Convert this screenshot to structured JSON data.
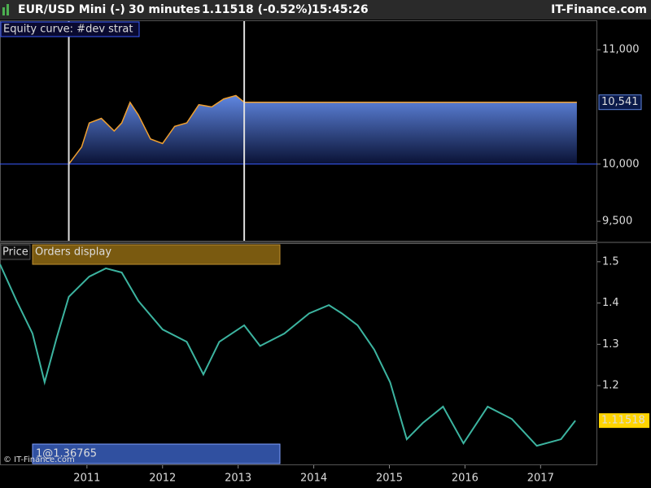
{
  "header": {
    "instrument": "EUR/USD Mini (-)",
    "timeframe": "30 minutes",
    "quote": "1.11518 (-0.52%)",
    "time": "15:45:26",
    "brand": "IT-Finance.com"
  },
  "footer": {
    "copyright": "© IT-Finance.com"
  },
  "chart_data": [
    {
      "type": "area",
      "title": "Equity curve: #dev strat",
      "color": "#6a8fe8",
      "x": [
        2010.76,
        2010.93,
        2011.03,
        2011.19,
        2011.36,
        2011.46,
        2011.57,
        2011.68,
        2011.84,
        2012.0,
        2012.16,
        2012.32,
        2012.48,
        2012.65,
        2012.81,
        2012.97,
        2013.08,
        2017.48
      ],
      "values": [
        10000,
        10150,
        10360,
        10400,
        10290,
        10360,
        10540,
        10430,
        10220,
        10180,
        10330,
        10360,
        10520,
        10500,
        10570,
        10600,
        10541,
        10541
      ],
      "last_value_label": "10,541",
      "baseline": 10000,
      "xlim": [
        2009.85,
        2017.75
      ],
      "ylim": [
        9330,
        11250
      ],
      "yticks": [
        {
          "value": 9500,
          "label": "9,500"
        },
        {
          "value": 10000,
          "label": "10,000"
        },
        {
          "value": 11000,
          "label": "11,000"
        }
      ]
    },
    {
      "type": "line",
      "title": "Price",
      "orders_label": "Orders display",
      "order_strip_label": "1@1.36765",
      "color": "#3cb4a0",
      "x": [
        2009.85,
        2010.07,
        2010.28,
        2010.44,
        2010.6,
        2010.76,
        2011.03,
        2011.25,
        2011.46,
        2011.68,
        2012.0,
        2012.32,
        2012.54,
        2012.75,
        2013.08,
        2013.29,
        2013.61,
        2013.94,
        2014.2,
        2014.37,
        2014.58,
        2014.8,
        2015.01,
        2015.23,
        2015.44,
        2015.71,
        2015.98,
        2016.3,
        2016.62,
        2016.95,
        2017.27,
        2017.46
      ],
      "values": [
        1.494,
        1.405,
        1.326,
        1.208,
        1.316,
        1.415,
        1.464,
        1.484,
        1.474,
        1.405,
        1.336,
        1.306,
        1.227,
        1.306,
        1.346,
        1.296,
        1.326,
        1.375,
        1.395,
        1.375,
        1.346,
        1.287,
        1.208,
        1.07,
        1.109,
        1.149,
        1.06,
        1.149,
        1.119,
        1.054,
        1.07,
        1.11518
      ],
      "xlim": [
        2009.85,
        2017.75
      ],
      "ylim": [
        1.007,
        1.543
      ],
      "yticks": [
        1.2,
        1.3,
        1.4,
        1.5
      ],
      "xticks": [
        2011,
        2012,
        2013,
        2014,
        2015,
        2016,
        2017
      ]
    }
  ]
}
